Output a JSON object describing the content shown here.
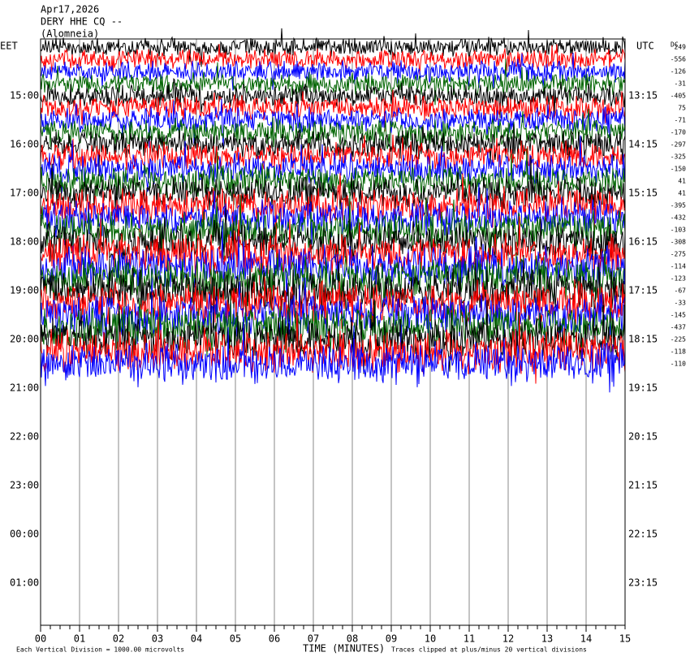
{
  "header": {
    "date": "Apr17,2026",
    "station": "DERY HHE CQ --",
    "location": "(Alomneia)"
  },
  "left_axis": {
    "label": "EET",
    "ticks": [
      "15:00",
      "16:00",
      "17:00",
      "18:00",
      "19:00",
      "20:00",
      "21:00",
      "22:00",
      "23:00",
      "00:00",
      "01:00"
    ]
  },
  "right_axis": {
    "label": "UTC",
    "ticks": [
      "13:15",
      "14:15",
      "15:15",
      "16:15",
      "17:15",
      "18:15",
      "19:15",
      "20:15",
      "21:15",
      "22:15",
      "23:15"
    ]
  },
  "dc_label": "DC",
  "dc_offsets": [
    249,
    -556,
    -126,
    -31,
    -405,
    75,
    -71,
    -170,
    -297,
    -325,
    -150,
    41,
    41,
    -395,
    -432,
    -103,
    -308,
    -275,
    -114,
    -123,
    -67,
    -33,
    -145,
    -437,
    -225,
    -118,
    -110
  ],
  "x_axis": {
    "label": "TIME (MINUTES)",
    "ticks": [
      "00",
      "01",
      "02",
      "03",
      "04",
      "05",
      "06",
      "07",
      "08",
      "09",
      "10",
      "11",
      "12",
      "13",
      "14",
      "15"
    ]
  },
  "footer": {
    "scale": "Each Vertical Division = 1000.00 microvolts",
    "clip": "Traces clipped at plus/minus 20 vertical divisions"
  }
}
